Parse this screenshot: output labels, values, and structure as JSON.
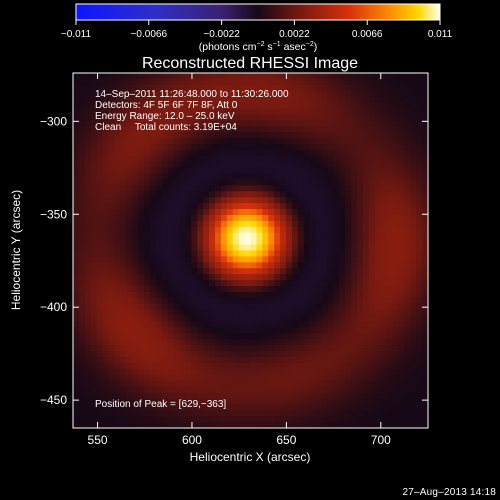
{
  "chart_data": {
    "type": "heatmap",
    "title": "Reconstructed RHESSI Image",
    "xlabel": "Heliocentric X (arcsec)",
    "ylabel": "Heliocentric Y (arcsec)",
    "xlim": [
      537,
      725
    ],
    "ylim": [
      -465,
      -274
    ],
    "x_ticks": [
      550,
      600,
      650,
      700
    ],
    "x_tick_labels": [
      "550",
      "600",
      "650",
      "700"
    ],
    "y_ticks": [
      -300,
      -350,
      -400,
      -450
    ],
    "y_tick_labels": [
      "−300",
      "−350",
      "−400",
      "−450"
    ],
    "colorbar": {
      "range": [
        -0.011,
        0.011
      ],
      "ticks": [
        -0.011,
        -0.0066,
        -0.0022,
        0.0022,
        0.0066,
        0.011
      ],
      "tick_labels": [
        "−0.011",
        "−0.0066",
        "−0.0022",
        "0.0022",
        "0.0066",
        "0.011"
      ],
      "unit_label": {
        "pre": "(photons cm",
        "sup1": "−2",
        "mid1": " s",
        "sup2": "−1",
        "mid2": " asec",
        "sup3": "−2",
        "post": ")"
      }
    },
    "annotations": [
      "14–Sep–2011 11:26:48.000 to 11:30:26.000",
      "Detectors: 4F 5F 6F 7F 8F, Att 0",
      "Energy Range: 12.0 – 25.0 keV",
      "Clean     Total counts: 3.19E+04"
    ],
    "peak_label": "Position of Peak = [629,−363]",
    "peak": {
      "x": 629,
      "y": -363,
      "value": 0.011
    },
    "source_sigma_arcsec": 13,
    "ring_radius_arcsec": 78,
    "ring_value": 0.0015,
    "minimum_value": -0.0006
  },
  "footer": {
    "timestamp": "27–Aug–2013 14:18"
  }
}
